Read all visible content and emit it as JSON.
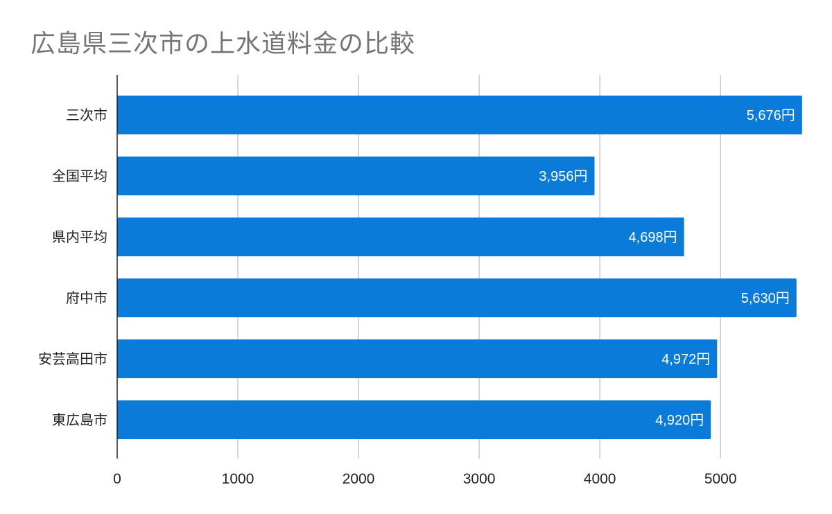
{
  "chart_data": {
    "type": "bar",
    "orientation": "horizontal",
    "title": "広島県三次市の上水道料金の比較",
    "categories": [
      "三次市",
      "全国平均",
      "県内平均",
      "府中市",
      "安芸高田市",
      "東広島市"
    ],
    "values": [
      5676,
      3956,
      4698,
      5630,
      4972,
      4920
    ],
    "data_labels": [
      "5,676円",
      "3,956円",
      "4,698円",
      "5,630円",
      "4,972円",
      "4,920円"
    ],
    "xlim": [
      0,
      5700
    ],
    "xticks": [
      0,
      1000,
      2000,
      3000,
      4000,
      5000
    ],
    "xlabel": "",
    "ylabel": "",
    "grid": true,
    "bar_color": "#0a7bd8",
    "grid_color": "#c8c8c8",
    "axis_color": "#222222"
  }
}
